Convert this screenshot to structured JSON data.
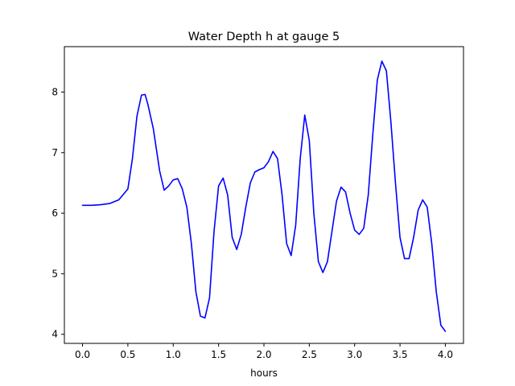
{
  "chart_data": {
    "type": "line",
    "title": "Water Depth h at gauge 5",
    "xlabel": "hours",
    "ylabel": "",
    "xlim": [
      -0.2,
      4.2
    ],
    "ylim": [
      3.85,
      8.75
    ],
    "xticks": [
      0.0,
      0.5,
      1.0,
      1.5,
      2.0,
      2.5,
      3.0,
      3.5,
      4.0
    ],
    "xtick_labels": [
      "0.0",
      "0.5",
      "1.0",
      "1.5",
      "2.0",
      "2.5",
      "3.0",
      "3.5",
      "4.0"
    ],
    "yticks": [
      4,
      5,
      6,
      7,
      8
    ],
    "ytick_labels": [
      "4",
      "5",
      "6",
      "7",
      "8"
    ],
    "grid": false,
    "series": [
      {
        "color": "#0000ff",
        "x": [
          0.0,
          0.1,
          0.2,
          0.3,
          0.4,
          0.5,
          0.55,
          0.6,
          0.65,
          0.69,
          0.72,
          0.78,
          0.85,
          0.9,
          0.95,
          1.0,
          1.05,
          1.1,
          1.15,
          1.2,
          1.25,
          1.3,
          1.35,
          1.4,
          1.45,
          1.5,
          1.55,
          1.6,
          1.65,
          1.7,
          1.75,
          1.8,
          1.85,
          1.9,
          1.95,
          2.0,
          2.05,
          2.1,
          2.15,
          2.2,
          2.25,
          2.3,
          2.35,
          2.4,
          2.45,
          2.5,
          2.55,
          2.6,
          2.65,
          2.7,
          2.75,
          2.8,
          2.85,
          2.9,
          2.95,
          3.0,
          3.05,
          3.1,
          3.15,
          3.2,
          3.25,
          3.3,
          3.35,
          3.4,
          3.45,
          3.5,
          3.55,
          3.6,
          3.65,
          3.7,
          3.75,
          3.8,
          3.85,
          3.9,
          3.95,
          4.0
        ],
        "values": [
          6.13,
          6.13,
          6.14,
          6.16,
          6.22,
          6.4,
          6.9,
          7.6,
          7.95,
          7.96,
          7.8,
          7.4,
          6.7,
          6.38,
          6.45,
          6.55,
          6.57,
          6.4,
          6.1,
          5.5,
          4.7,
          4.3,
          4.27,
          4.6,
          5.7,
          6.45,
          6.58,
          6.3,
          5.6,
          5.4,
          5.65,
          6.1,
          6.5,
          6.68,
          6.72,
          6.75,
          6.85,
          7.02,
          6.9,
          6.3,
          5.5,
          5.3,
          5.8,
          6.9,
          7.62,
          7.2,
          6.0,
          5.2,
          5.02,
          5.2,
          5.7,
          6.2,
          6.43,
          6.35,
          6.0,
          5.72,
          5.65,
          5.75,
          6.3,
          7.3,
          8.2,
          8.51,
          8.35,
          7.5,
          6.5,
          5.6,
          5.25,
          5.25,
          5.6,
          6.05,
          6.22,
          6.1,
          5.5,
          4.7,
          4.15,
          4.05
        ]
      }
    ]
  }
}
